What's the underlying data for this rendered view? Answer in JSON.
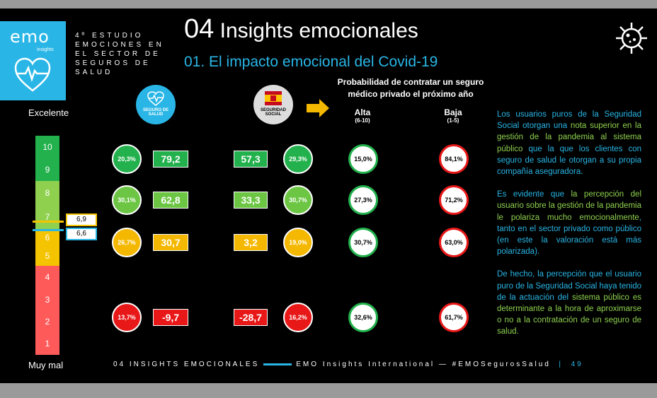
{
  "header": {
    "logo_text": "emo",
    "logo_sub": "insights",
    "study": "4º ESTUDIO EMOCIONES EN EL SECTOR DE SEGUROS DE SALUD",
    "title_num": "04",
    "title": "Insights emocionales",
    "subtitle": "01. El impacto emocional del Covid-19"
  },
  "scale": {
    "top_label": "Excelente",
    "bottom_label": "Muy mal",
    "levels": [
      "10",
      "9",
      "8",
      "7",
      "6",
      "5",
      "4",
      "3",
      "2",
      "1"
    ],
    "marker_high": "6,9",
    "marker_low": "6,6",
    "colors": {
      "green": "#22b14c",
      "lightgreen": "#8fd14f",
      "yellow": "#f5c400",
      "red": "#ff5a5a"
    }
  },
  "badges": {
    "seguro": "SEGURO DE SALUD",
    "seguridad": "SEGURIDAD SOCIAL"
  },
  "probability": {
    "title": "Probabilidad de contratar un seguro médico privado el próximo año",
    "alta": "Alta",
    "alta_range": "(6-10)",
    "baja": "Baja",
    "baja_range": "(1-5)"
  },
  "rows": [
    {
      "seg_pct": "20,3%",
      "seg_val": "79,2",
      "ss_val": "57,3",
      "ss_pct": "29,3%",
      "alta": "15,0%",
      "baja": "84,1%",
      "color": "#22b14c"
    },
    {
      "seg_pct": "30,1%",
      "seg_val": "62,8",
      "ss_val": "33,3",
      "ss_pct": "30,7%",
      "alta": "27,3%",
      "baja": "71,2%",
      "color": "#6cc644"
    },
    {
      "seg_pct": "26,7%",
      "seg_val": "30,7",
      "ss_val": "3,2",
      "ss_pct": "19,0%",
      "alta": "30,7%",
      "baja": "63,0%",
      "color": "#f5b800"
    },
    {
      "seg_pct": "13,7%",
      "seg_val": "-9,7",
      "ss_val": "-28,7",
      "ss_pct": "16,2%",
      "alta": "32,6%",
      "baja": "61,7%",
      "color": "#e81818"
    }
  ],
  "description": {
    "p1_a": "Los usuarios puros de la Seguridad Social otorgan una ",
    "p1_b": "nota superior en la gestión de la pandemia al sistema público",
    "p1_c": " que la que los clientes con seguro de salud le otorgan a su propia compañía aseguradora.",
    "p2_a": "Es evidente que ",
    "p2_b": "la percepción del usuario sobre la gestión de la pandemia le polariza mucho emocionalmente",
    "p2_c": ", tanto en el sector privado como público (en este la valoración está más polarizada).",
    "p3_a": "De hecho, la percepción que el usuario puro de la Seguridad Social haya tenido de la actuación del ",
    "p3_b": "sistema público es determinante a la hora de aproximarse o no a la contratación de un seguro de salud."
  },
  "footer": {
    "left": "04 INSIGHTS EMOCIONALES",
    "right": "EMO Insights International — #EMOSegurosSalud",
    "page": "49"
  }
}
